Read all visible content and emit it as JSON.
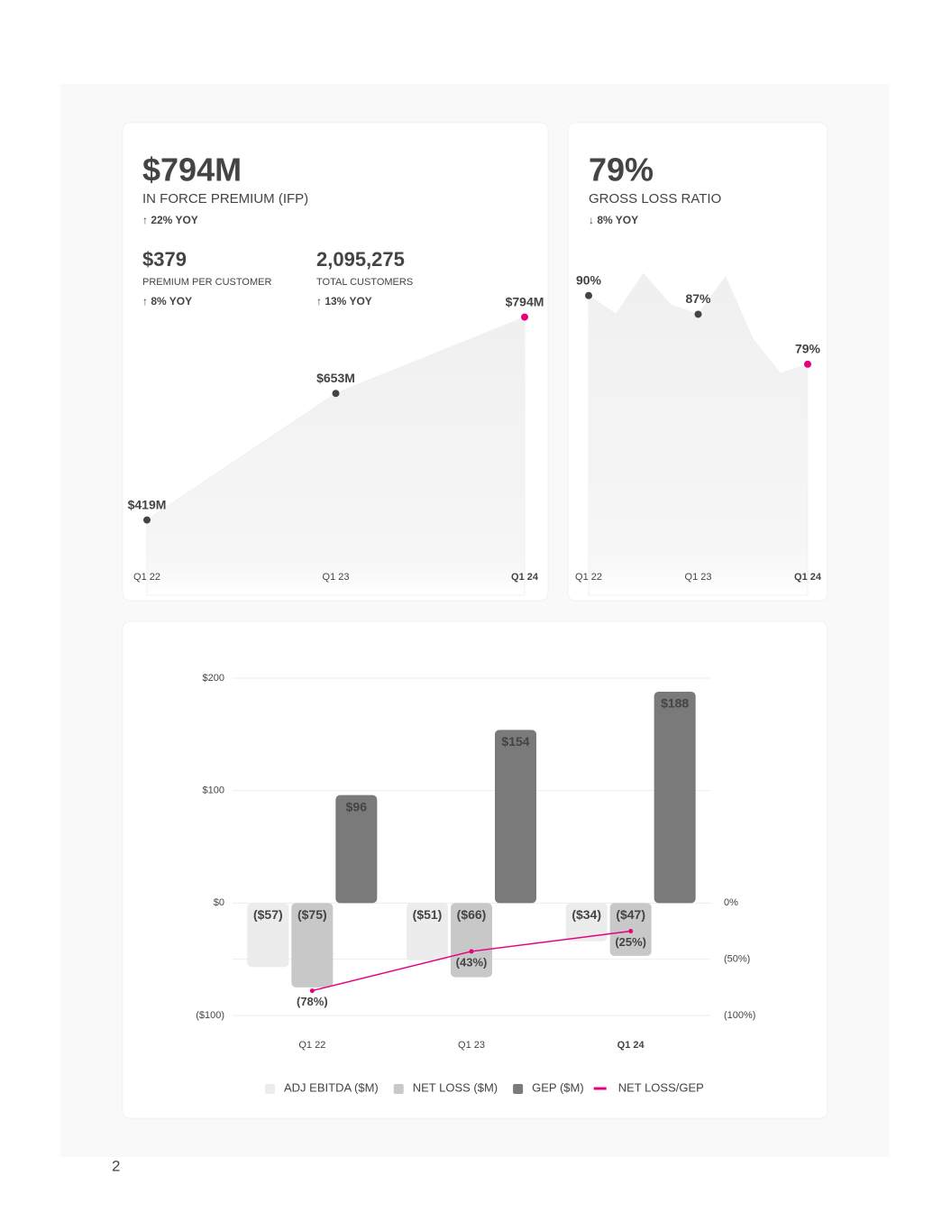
{
  "page_number": "2",
  "chart_data": [
    {
      "type": "area",
      "title": "$794M",
      "subtitle": "IN FORCE PREMIUM (IFP)",
      "change": "↑ 22% YOY",
      "kpis": [
        {
          "value": "$379",
          "label": "PREMIUM PER CUSTOMER",
          "change": "↑ 8% YOY"
        },
        {
          "value": "2,095,275",
          "label": "TOTAL CUSTOMERS",
          "change": "↑ 13% YOY"
        }
      ],
      "categories": [
        "Q1 22",
        "Q1 23",
        "Q1 24"
      ],
      "values": [
        419,
        653,
        794
      ],
      "value_labels": [
        "$419M",
        "$653M",
        "$794M"
      ],
      "ylim": [
        280,
        880
      ],
      "color": "#444444",
      "highlight_color": "#e6007e"
    },
    {
      "type": "area",
      "title": "79%",
      "subtitle": "GROSS LOSS RATIO",
      "change": "↓ 8% YOY",
      "categories": [
        "Q1 22",
        null,
        null,
        null,
        "Q1 23",
        null,
        null,
        null,
        "Q1 24"
      ],
      "values": [
        90,
        87,
        93.5,
        88.5,
        87,
        93,
        83,
        77.5,
        79
      ],
      "value_labels": [
        "90%",
        null,
        null,
        null,
        "87%",
        null,
        null,
        null,
        "79%"
      ],
      "ylim": [
        42,
        94
      ],
      "color": "#444444",
      "highlight_color": "#e6007e"
    },
    {
      "type": "bar",
      "categories": [
        "Q1 22",
        "Q1 23",
        "Q1 24"
      ],
      "series": [
        {
          "name": "ADJ EBITDA ($M)",
          "color": "#ececec",
          "values": [
            -57,
            -51,
            -34
          ],
          "value_labels": [
            "($57)",
            "($51)",
            "($34)"
          ]
        },
        {
          "name": "NET LOSS ($M)",
          "color": "#c8c8c8",
          "values": [
            -75,
            -66,
            -47
          ],
          "value_labels": [
            "($75)",
            "($66)",
            "($47)"
          ]
        },
        {
          "name": "GEP ($M)",
          "color": "#7a7a7a",
          "values": [
            96,
            154,
            188
          ],
          "value_labels": [
            "$96",
            "$154",
            "$188"
          ]
        },
        {
          "name": "NET LOSS/GEP",
          "color": "#e6007e",
          "type": "line",
          "axis": "y2",
          "values": [
            -78,
            -43,
            -25
          ],
          "value_labels": [
            "(78%)",
            "(43%)",
            "(25%)"
          ]
        }
      ],
      "ylim": [
        -100,
        200
      ],
      "yticks": [
        {
          "value": -100,
          "label": "($100)"
        },
        {
          "value": 0,
          "label": "$0"
        },
        {
          "value": 100,
          "label": "$100"
        },
        {
          "value": 200,
          "label": "$200"
        }
      ],
      "y2lim": [
        -100,
        200
      ],
      "y2ticks": [
        {
          "value": 0,
          "label": "0%"
        },
        {
          "value": -50,
          "label": "(50%)"
        },
        {
          "value": -100,
          "label": "(100%)"
        }
      ],
      "grid": true,
      "legend": "bottom"
    }
  ]
}
